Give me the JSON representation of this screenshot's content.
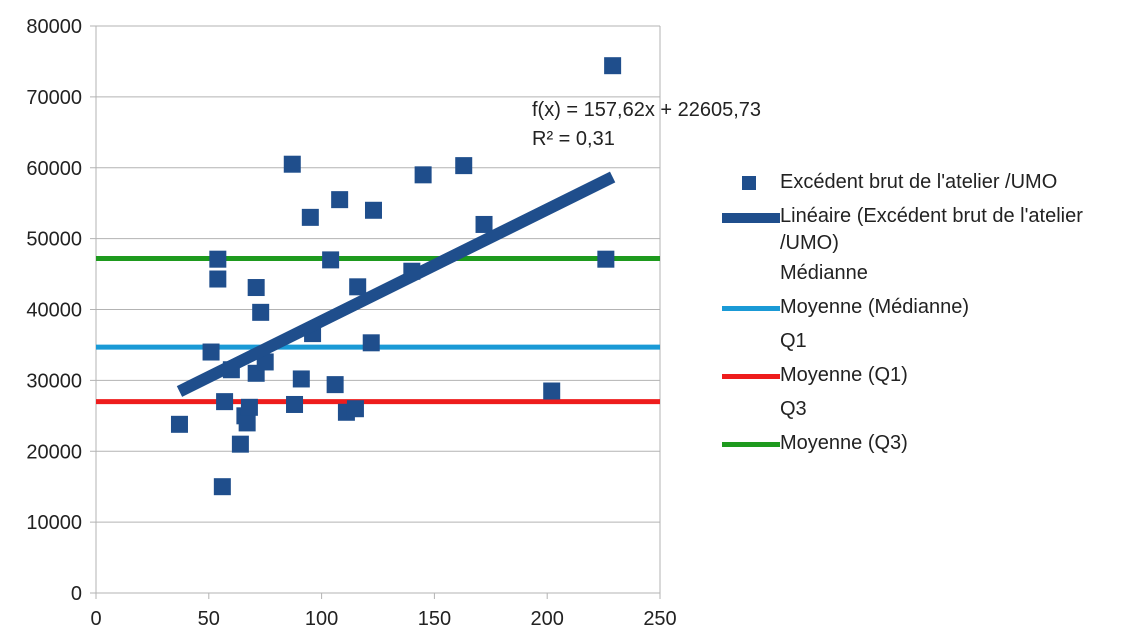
{
  "chart_data": {
    "type": "scatter",
    "xlim": [
      0,
      250
    ],
    "ylim": [
      0,
      80000
    ],
    "x_ticks": [
      0,
      50,
      100,
      150,
      200,
      250
    ],
    "y_ticks": [
      0,
      10000,
      20000,
      30000,
      40000,
      50000,
      60000,
      70000,
      80000
    ],
    "grid": "horizontal",
    "legend_position": "right",
    "series": [
      {
        "name": "Excédent brut de l'atelier /UMO",
        "color": "#1f4e8c",
        "marker": "square",
        "points": [
          [
            37,
            23800
          ],
          [
            51,
            34000
          ],
          [
            54,
            44300
          ],
          [
            54,
            47100
          ],
          [
            56,
            15000
          ],
          [
            57,
            27000
          ],
          [
            60,
            31500
          ],
          [
            64,
            21000
          ],
          [
            66,
            25000
          ],
          [
            67,
            24000
          ],
          [
            68,
            26200
          ],
          [
            71,
            43100
          ],
          [
            71,
            31000
          ],
          [
            73,
            39600
          ],
          [
            75,
            32600
          ],
          [
            87,
            60500
          ],
          [
            88,
            26600
          ],
          [
            91,
            30200
          ],
          [
            95,
            53000
          ],
          [
            96,
            36600
          ],
          [
            104,
            47000
          ],
          [
            106,
            29400
          ],
          [
            108,
            55500
          ],
          [
            111,
            25500
          ],
          [
            115,
            26000
          ],
          [
            116,
            43200
          ],
          [
            122,
            35300
          ],
          [
            123,
            54000
          ],
          [
            140,
            45400
          ],
          [
            145,
            59000
          ],
          [
            163,
            60300
          ],
          [
            172,
            52000
          ],
          [
            202,
            28500
          ],
          [
            226,
            47100
          ],
          [
            229,
            74400
          ]
        ]
      }
    ],
    "trendline": {
      "name": "Linéaire (Excédent brut de l'atelier /UMO)",
      "color": "#1f4e8c",
      "slope": 157.62,
      "intercept": 22605.73,
      "x_range": [
        37,
        229
      ],
      "equation": "f(x) = 157,62x + 22605,73",
      "r2": "R² = 0,31"
    },
    "reference_lines": [
      {
        "name": "Moyenne (Médianne)",
        "value": 34700,
        "color": "#1a9ad6"
      },
      {
        "name": "Moyenne (Q1)",
        "value": 27000,
        "color": "#ee1c1c"
      },
      {
        "name": "Moyenne (Q3)",
        "value": 47200,
        "color": "#1e9a1e"
      }
    ]
  },
  "legend": [
    {
      "label": "Excédent brut de l'atelier /UMO",
      "symbol": "square",
      "color": "#1f4e8c"
    },
    {
      "label": "Linéaire (Excédent brut de l'atelier /UMO)",
      "symbol": "thick-line",
      "color": "#1f4e8c"
    },
    {
      "label": "Médianne",
      "symbol": "none",
      "color": ""
    },
    {
      "label": "Moyenne (Médianne)",
      "symbol": "line",
      "color": "#1a9ad6"
    },
    {
      "label": "Q1",
      "symbol": "none",
      "color": ""
    },
    {
      "label": "Moyenne (Q1)",
      "symbol": "line",
      "color": "#ee1c1c"
    },
    {
      "label": "Q3",
      "symbol": "none",
      "color": ""
    },
    {
      "label": "Moyenne (Q3)",
      "symbol": "line",
      "color": "#1e9a1e"
    }
  ]
}
